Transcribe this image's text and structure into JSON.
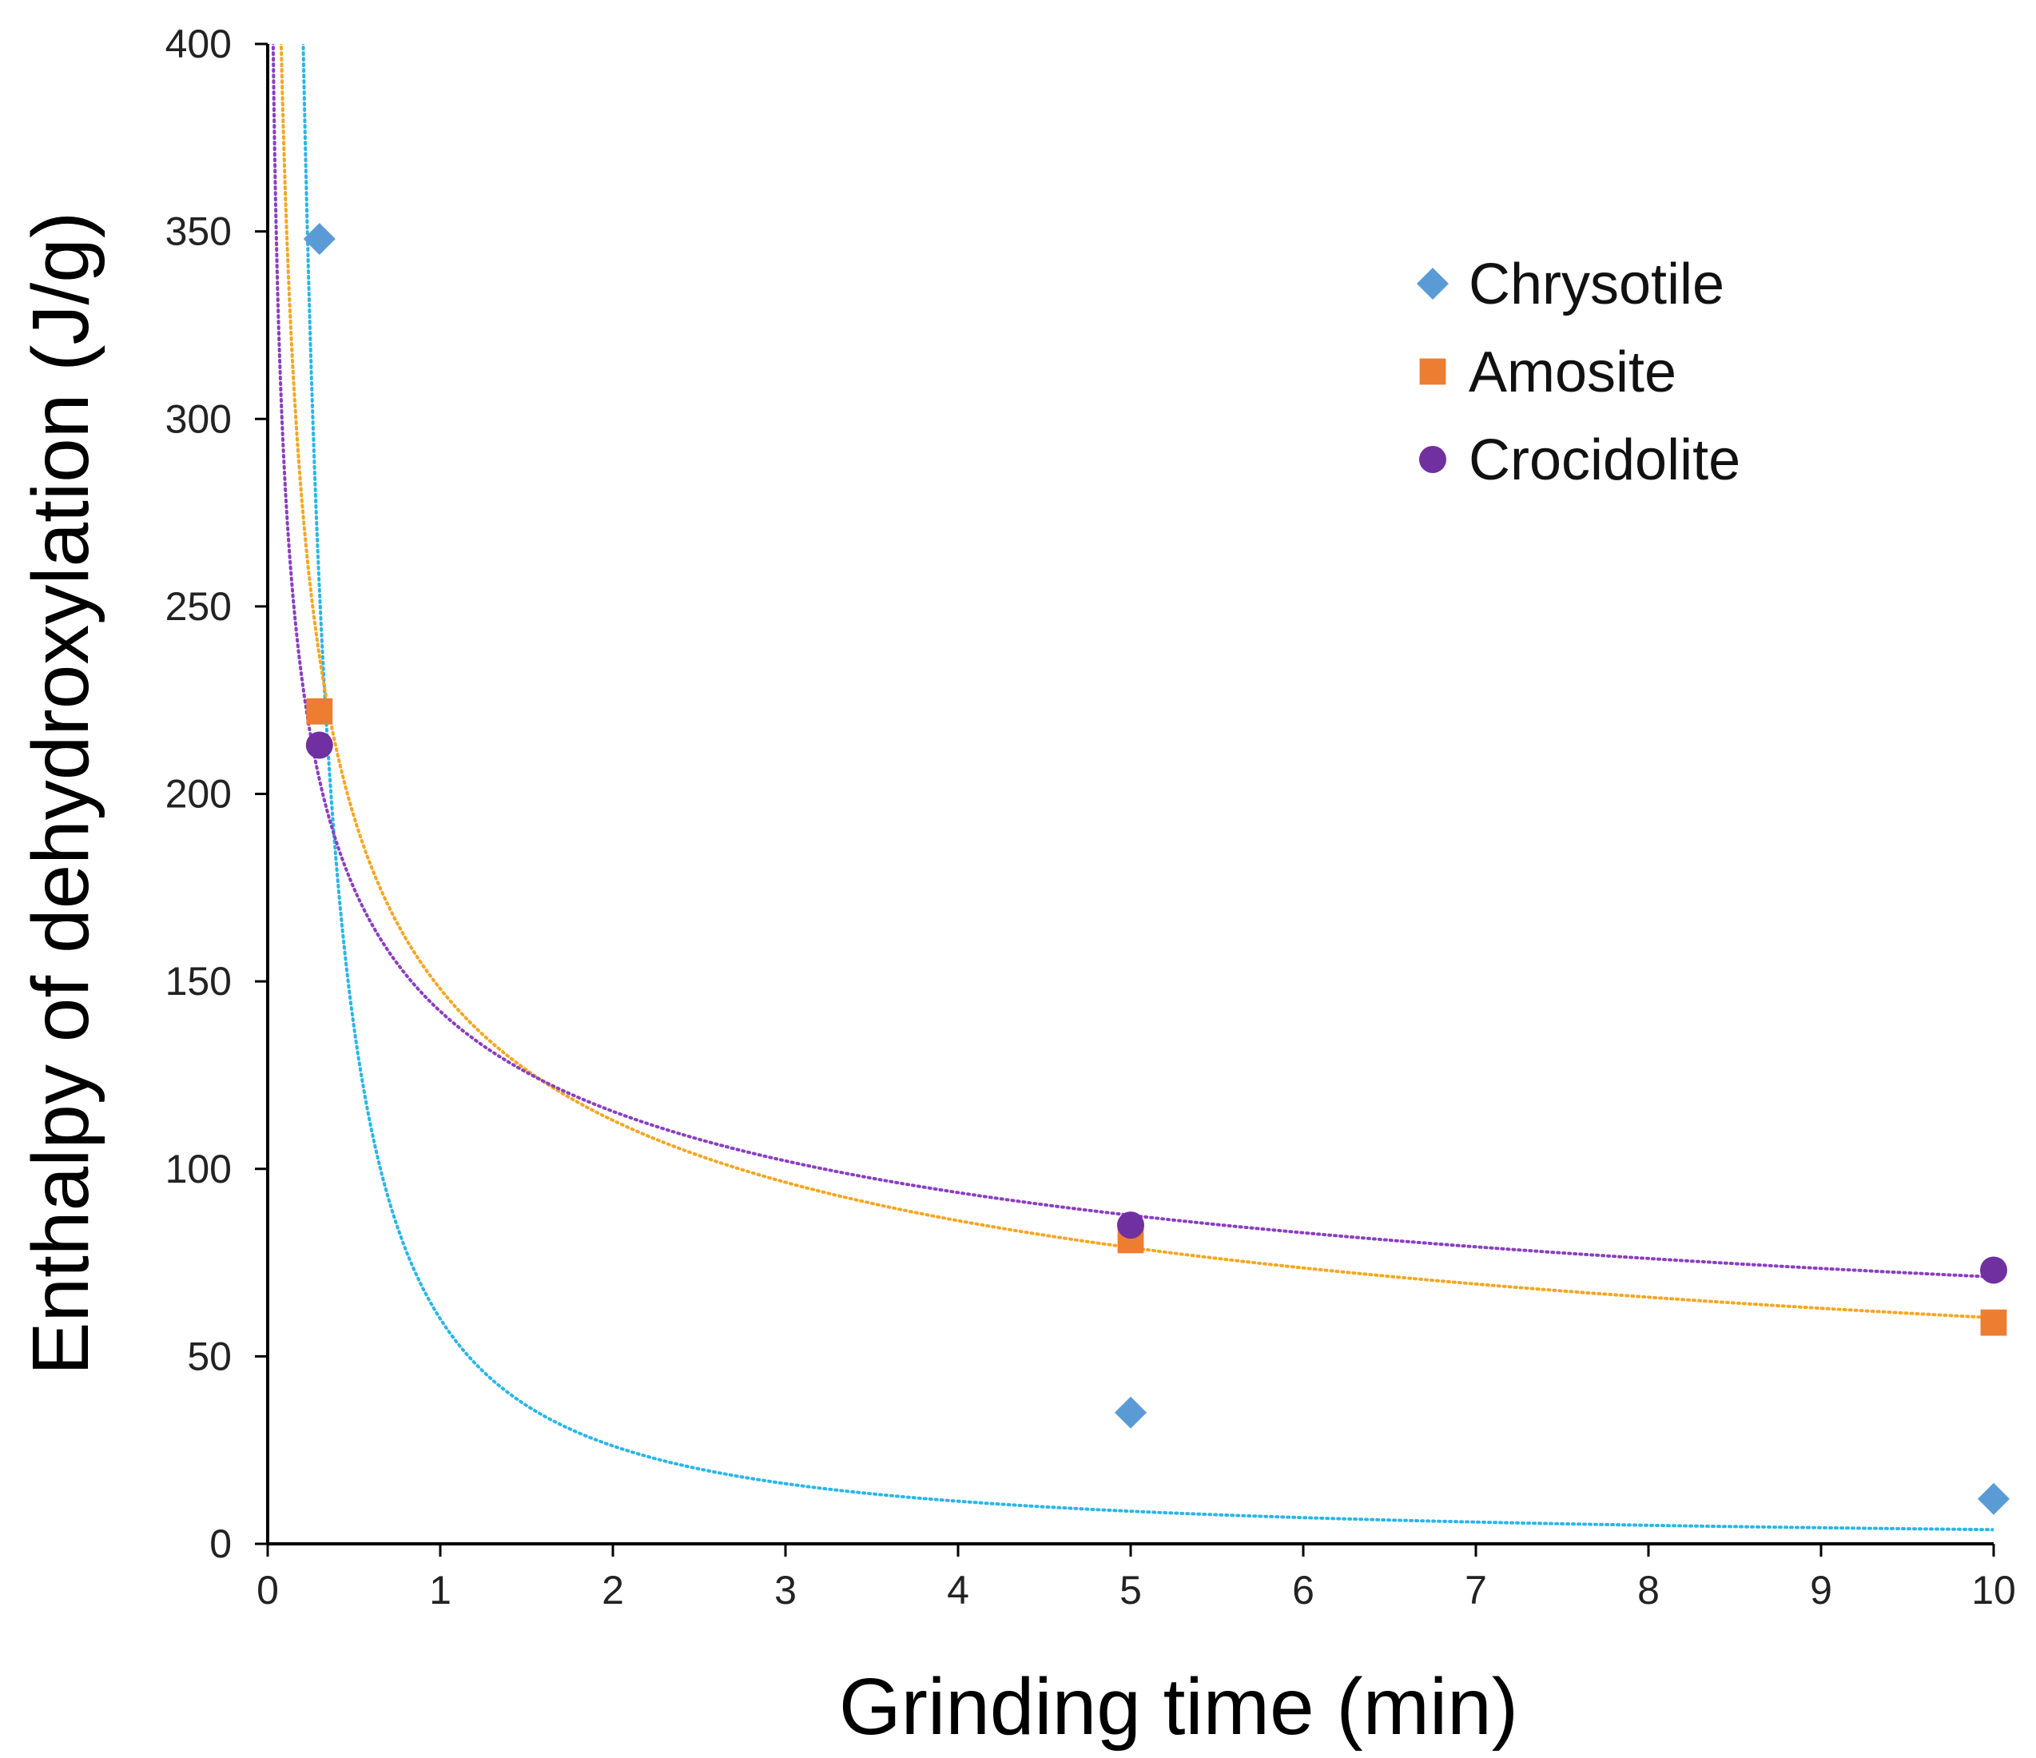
{
  "chart_data": {
    "type": "scatter",
    "xlabel": "Grinding time (min)",
    "ylabel": "Enthalpy of dehydroxylation (J/g)",
    "xlim": [
      0,
      10
    ],
    "ylim": [
      0,
      400
    ],
    "x_ticks": [
      0,
      1,
      2,
      3,
      4,
      5,
      6,
      7,
      8,
      9,
      10
    ],
    "y_ticks": [
      0,
      50,
      100,
      150,
      200,
      250,
      300,
      350,
      400
    ],
    "grid": false,
    "legend": "top-right",
    "series": [
      {
        "name": "Chrysotile",
        "marker": "diamond",
        "color": "#5b9bd5",
        "trend_color": "#29b6e8",
        "x": [
          0.3,
          5,
          10
        ],
        "y": [
          348,
          35,
          12
        ],
        "trendline": {
          "type": "power",
          "a": 60,
          "b": -1.2
        }
      },
      {
        "name": "Amosite",
        "marker": "square",
        "color": "#ed7d31",
        "trend_color": "#f5a623",
        "x": [
          0.3,
          5,
          10
        ],
        "y": [
          222,
          81,
          59
        ],
        "trendline": {
          "type": "power",
          "a": 148,
          "b": -0.39
        }
      },
      {
        "name": "Crocidolite",
        "marker": "circle",
        "color": "#7030a0",
        "trend_color": "#8a3fc0",
        "x": [
          0.3,
          5,
          10
        ],
        "y": [
          213,
          85,
          73
        ],
        "trendline": {
          "type": "power",
          "a": 142,
          "b": -0.3
        }
      }
    ]
  }
}
